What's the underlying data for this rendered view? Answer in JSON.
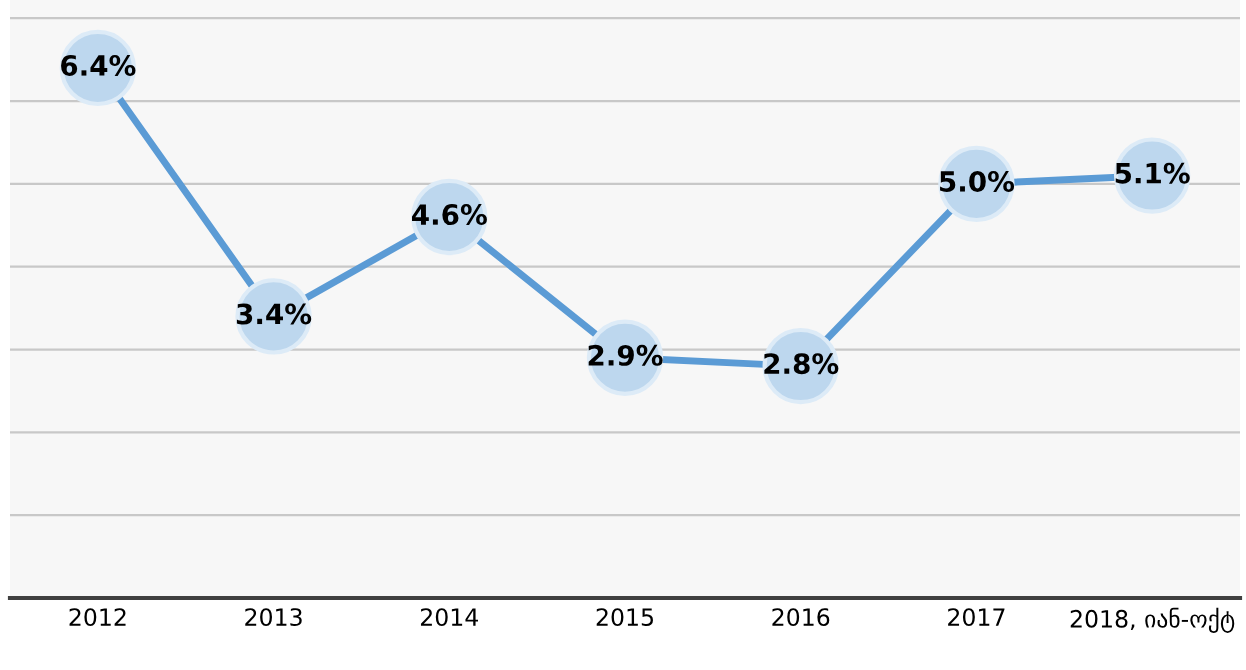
{
  "chart_data": {
    "type": "line",
    "categories": [
      "2012",
      "2013",
      "2014",
      "2015",
      "2016",
      "2017",
      "2018, იან-ოქტ"
    ],
    "series": [
      {
        "color": "#5b9bd5",
        "values": [
          6.4,
          3.4,
          4.6,
          2.9,
          2.8,
          5.0,
          5.1
        ],
        "value_labels": [
          "6.4%",
          "3.4%",
          "4.6%",
          "2.9%",
          "2.8%",
          "5.0%",
          "5.1%"
        ]
      }
    ],
    "ylim": [
      0,
      7.22
    ],
    "yticks": [
      {
        "value": 1,
        "label": null
      },
      {
        "value": 2,
        "label": null
      },
      {
        "value": 3,
        "label": null
      },
      {
        "value": 4,
        "label": null
      },
      {
        "value": 5,
        "label": null
      },
      {
        "value": 6,
        "label": null
      },
      {
        "value": 7,
        "label": null
      }
    ],
    "tick_labels": "x",
    "grid": "y",
    "marker": "circle",
    "line_style": "solid",
    "legend": false
  }
}
